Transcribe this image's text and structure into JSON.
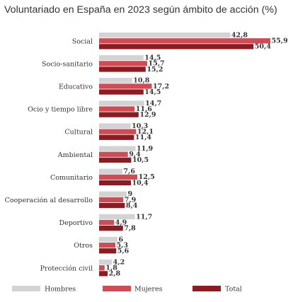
{
  "chart_data": {
    "type": "bar",
    "orientation": "horizontal",
    "title": "Voluntariado en España en 2023 según ámbito de acción (%)",
    "categories": [
      "Social",
      "Socio-sanitario",
      "Educativo",
      "Ocio y tiempo libre",
      "Cultural",
      "Ambiental",
      "Comunitario",
      "Cooperación al desarrollo",
      "Deportivo",
      "Otros",
      "Protección civil"
    ],
    "series": [
      {
        "name": "Hombres",
        "values": [
          42.8,
          14.5,
          10.8,
          14.7,
          10.3,
          11.9,
          7.6,
          9,
          11.7,
          6,
          4.2
        ]
      },
      {
        "name": "Mujeres",
        "values": [
          55.9,
          15.7,
          17.2,
          11.6,
          12.1,
          9.4,
          12.5,
          7.9,
          4.9,
          5.3,
          1.8
        ]
      },
      {
        "name": "Total",
        "values": [
          50.4,
          15.2,
          14.5,
          12.9,
          11.4,
          10.5,
          10.4,
          8.4,
          7.8,
          5.6,
          2.8
        ]
      }
    ],
    "value_labels": [
      [
        "42,8",
        "14,5",
        "10,8",
        "14,7",
        "10,3",
        "11,9",
        "7,6",
        "9",
        "11,7",
        "6",
        "4,2"
      ],
      [
        "55,9",
        "15,7",
        "17,2",
        "11,6",
        "12,1",
        "9,4",
        "12,5",
        "7,9",
        "4,9",
        "5,3",
        "1,8"
      ],
      [
        "50,4",
        "15,2",
        "14,5",
        "12,9",
        "11,4",
        "10,5",
        "10,4",
        "8,4",
        "7,8",
        "5,6",
        "2,8"
      ]
    ],
    "legend_position": "bottom",
    "grid": false
  },
  "colors": {
    "hombres": "#d3d3d3",
    "mujeres": "#d14b55",
    "total": "#8c1c22",
    "text": "#333333"
  }
}
